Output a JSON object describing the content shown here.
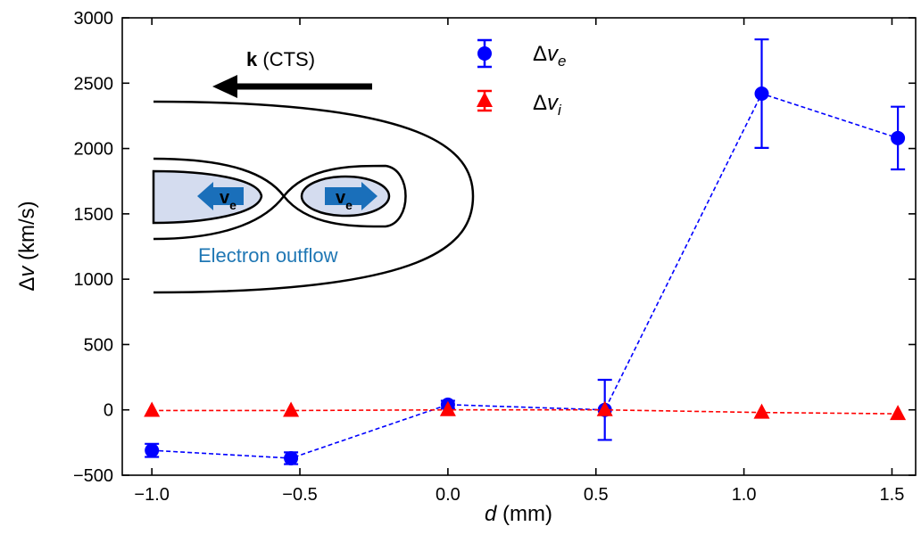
{
  "chart_data": {
    "type": "scatter",
    "xlabel": {
      "italic": "d",
      "rest": " (mm)"
    },
    "ylabel": {
      "prefix": "Δ",
      "italic": "v",
      "rest": " (km/s)"
    },
    "xlim": [
      -1.1,
      1.58
    ],
    "ylim": [
      -500,
      3000
    ],
    "xticks": [
      -1.0,
      -0.5,
      0.0,
      0.5,
      1.0,
      1.5
    ],
    "xtick_labels": [
      "−1.0",
      "−0.5",
      "0.0",
      "0.5",
      "1.0",
      "1.5"
    ],
    "yticks": [
      -500,
      0,
      500,
      1000,
      1500,
      2000,
      2500,
      3000
    ],
    "ytick_labels": [
      "−500",
      "0",
      "500",
      "1000",
      "1500",
      "2000",
      "2500",
      "3000"
    ],
    "grid": false,
    "legend_position": "top-center",
    "series": [
      {
        "name": "Δv_e",
        "legend": {
          "prefix": "Δ",
          "italic": "v",
          "sub": "e"
        },
        "color": "#0000ff",
        "marker": "circle",
        "linestyle": "dashed",
        "x": [
          -1.0,
          -0.53,
          0.0,
          0.53,
          1.06,
          1.52
        ],
        "y": [
          -310,
          -370,
          40,
          0,
          2420,
          2080
        ],
        "err": [
          50,
          45,
          30,
          230,
          415,
          240
        ]
      },
      {
        "name": "Δv_i",
        "legend": {
          "prefix": "Δ",
          "italic": "v",
          "sub": "i"
        },
        "color": "#ff0000",
        "marker": "triangle",
        "linestyle": "dashed",
        "x": [
          -1.0,
          -0.53,
          0.0,
          0.53,
          1.06,
          1.52
        ],
        "y": [
          -5,
          -5,
          0,
          0,
          -20,
          -30
        ],
        "err": [
          0,
          0,
          0,
          0,
          0,
          0
        ]
      }
    ],
    "inset": {
      "arrow_label_bold": "k",
      "arrow_label_rest": " (CTS)",
      "velocity_symbol": "v",
      "velocity_subscript": "e",
      "caption": "Electron outflow",
      "caption_color": "#1f77b4",
      "arrow_color": "#1a6fba",
      "fill_color": "#d4dcef"
    }
  }
}
